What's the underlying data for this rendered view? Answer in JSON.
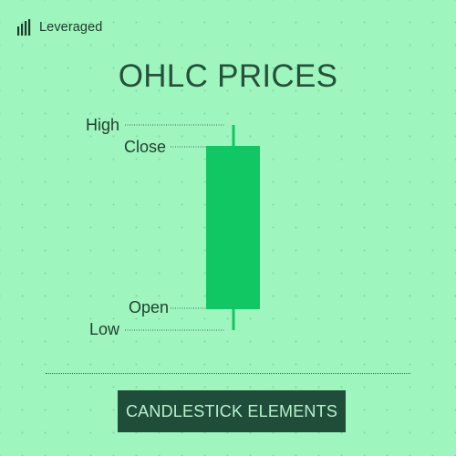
{
  "brand": {
    "name": "Leveraged",
    "logo_icon": "brand-logo-icon"
  },
  "title": "OHLC PRICES",
  "labels": {
    "high": "High",
    "close": "Close",
    "open": "Open",
    "low": "Low"
  },
  "badge": "CANDLESTICK ELEMENTS",
  "colors": {
    "background": "#9ff5be",
    "candle_body": "#10c764",
    "wick": "#10c764",
    "title": "#24513a",
    "badge_bg": "#1f4d3a",
    "badge_text": "#b8f2cc",
    "leader_line": "#3f6f55"
  }
}
